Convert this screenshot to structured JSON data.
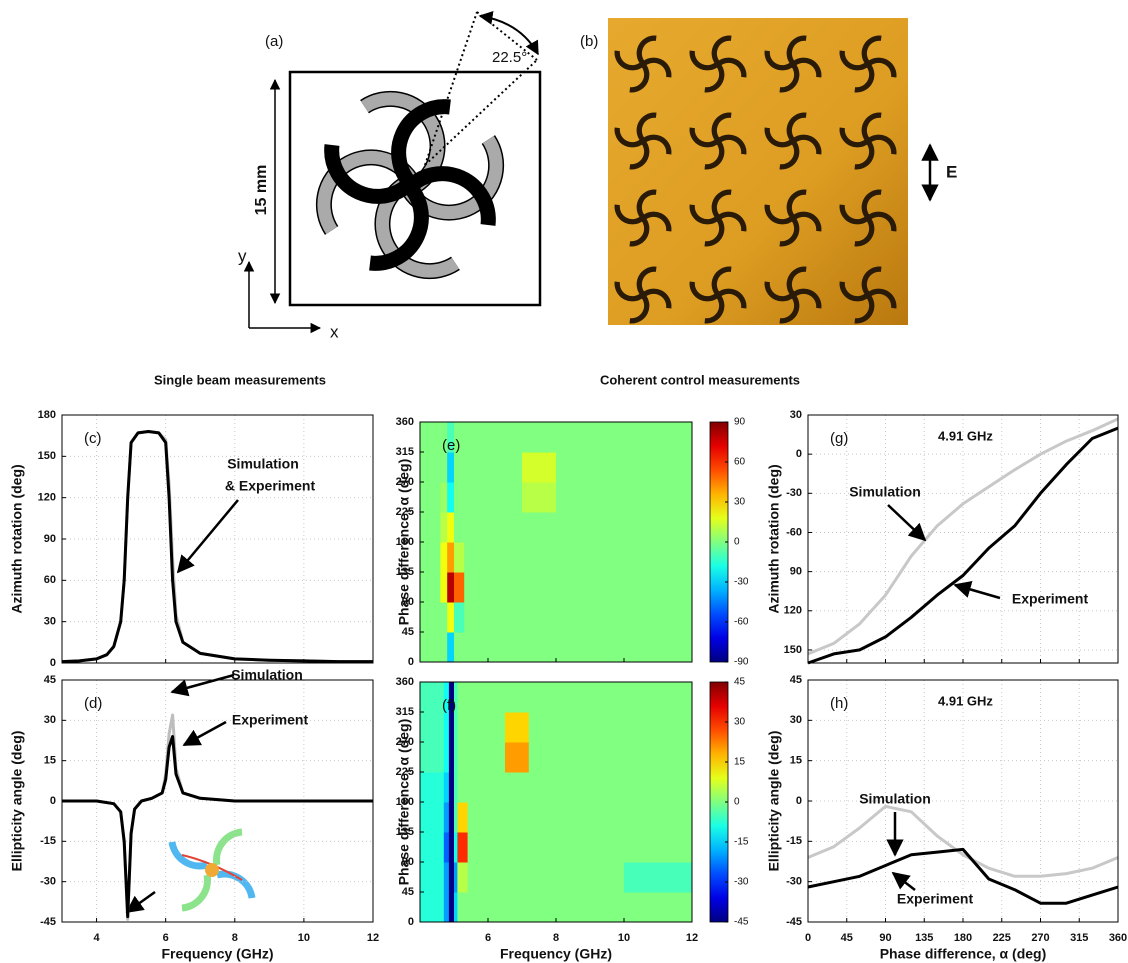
{
  "figure": {
    "a": {
      "label": "(a)",
      "angle": "22.5°",
      "size": "15 mm",
      "y_axis": "y",
      "x_axis": "x"
    },
    "b": {
      "label": "(b)",
      "field": "E"
    },
    "headings": [
      "Single beam measurements",
      "Coherent control measurements"
    ]
  },
  "chart_data": [
    {
      "type": "line",
      "label": "(c)",
      "ylabel": "Azimuth rotation (deg)",
      "x": [
        3,
        3.5,
        4,
        4.3,
        4.5,
        4.7,
        4.8,
        4.9,
        5.0,
        5.2,
        5.5,
        5.8,
        6.0,
        6.1,
        6.2,
        6.3,
        6.5,
        7,
        8,
        9,
        10,
        11,
        12
      ],
      "xlim": [
        3,
        12
      ],
      "xticks": [
        4,
        6,
        8,
        10,
        12
      ],
      "xtick_labels": false,
      "ylim": [
        0,
        180
      ],
      "yticks": [
        0,
        30,
        60,
        90,
        120,
        150,
        180
      ],
      "grid": true,
      "series": [
        {
          "color": "#bdbdbd",
          "values": [
            1,
            1.5,
            3,
            6,
            12,
            30,
            60,
            120,
            160,
            167,
            168,
            167,
            162,
            130,
            75,
            35,
            15,
            7,
            3,
            2,
            1.5,
            1,
            1
          ]
        },
        {
          "color": "#000000",
          "values": [
            1,
            1.5,
            3,
            6,
            12,
            30,
            60,
            120,
            160,
            167,
            168,
            167,
            160,
            120,
            60,
            30,
            15,
            7,
            3,
            2,
            1.5,
            1,
            1
          ]
        }
      ],
      "annotations": [
        {
          "text": "Simulation",
          "color": "#c00000"
        },
        {
          "text": "& Experiment",
          "color": "#000000"
        }
      ]
    },
    {
      "type": "line",
      "label": "(d)",
      "ylabel": "Ellipticity angle (deg)",
      "xlabel": "Frequency (GHz)",
      "x": [
        3,
        4,
        4.5,
        4.7,
        4.8,
        4.9,
        5.0,
        5.1,
        5.3,
        5.6,
        5.9,
        6.0,
        6.1,
        6.2,
        6.3,
        6.5,
        7,
        8,
        9,
        10,
        11,
        12
      ],
      "xlim": [
        3,
        12
      ],
      "xticks": [
        4,
        6,
        8,
        10,
        12
      ],
      "xtick_labels": true,
      "ylim": [
        -45,
        45
      ],
      "yticks": [
        -45,
        -30,
        -15,
        0,
        15,
        30,
        45
      ],
      "grid": true,
      "series": [
        {
          "color": "#bdbdbd",
          "values": [
            0,
            0,
            -1,
            -4,
            -16,
            -44,
            -12,
            -3,
            0,
            1,
            3,
            10,
            25,
            32,
            12,
            3,
            1,
            0,
            0,
            0,
            0,
            0
          ]
        },
        {
          "color": "#000000",
          "values": [
            0,
            0,
            -1,
            -4,
            -15,
            -43,
            -12,
            -3,
            0,
            1,
            3,
            8,
            20,
            24,
            10,
            3,
            1,
            0,
            0,
            0,
            0,
            0
          ]
        }
      ],
      "annotations": [
        {
          "text": "Simulation",
          "color": "#c00000"
        },
        {
          "text": "Experiment",
          "color": "#000000"
        }
      ]
    },
    {
      "type": "heatmap",
      "label": "(e)",
      "ylabel": "Phase difference, α (deg)",
      "xlim": [
        4,
        12
      ],
      "xticks": [
        6,
        8,
        10,
        12
      ],
      "xtick_labels": false,
      "ylim": [
        0,
        360
      ],
      "yticks": [
        0,
        45,
        90,
        135,
        180,
        225,
        270,
        315,
        360
      ],
      "x_edges": [
        4,
        4.6,
        4.8,
        5.0,
        5.3,
        6,
        7,
        8,
        10,
        12
      ],
      "y_edges": [
        0,
        45,
        90,
        135,
        180,
        225,
        270,
        315,
        360
      ],
      "values": [
        [
          0,
          0,
          -30,
          0,
          0,
          0,
          0,
          0,
          0
        ],
        [
          0,
          0,
          20,
          -10,
          0,
          0,
          0,
          0,
          0
        ],
        [
          0,
          20,
          80,
          50,
          0,
          0,
          0,
          0,
          0
        ],
        [
          0,
          20,
          40,
          10,
          0,
          0,
          0,
          0,
          0
        ],
        [
          0,
          10,
          20,
          0,
          0,
          0,
          0,
          0,
          0
        ],
        [
          0,
          5,
          -20,
          0,
          0,
          0,
          10,
          0,
          0
        ],
        [
          0,
          0,
          -30,
          0,
          0,
          0,
          15,
          0,
          0
        ],
        [
          0,
          0,
          -10,
          0,
          0,
          0,
          0,
          0,
          0
        ]
      ],
      "colormap": "jet",
      "clim": [
        -90,
        90
      ],
      "cbar_ticks": [
        -90,
        -60,
        -30,
        0,
        30,
        60,
        90
      ]
    },
    {
      "type": "heatmap",
      "label": "(f)",
      "ylabel": "Phase difference, α (deg)",
      "xlabel": "Frequency (GHz)",
      "xlim": [
        4,
        12
      ],
      "xticks": [
        6,
        8,
        10,
        12
      ],
      "xtick_labels": true,
      "ylim": [
        0,
        360
      ],
      "yticks": [
        0,
        45,
        90,
        135,
        180,
        225,
        270,
        315,
        360
      ],
      "x_edges": [
        4,
        4.7,
        4.85,
        5.0,
        5.1,
        5.4,
        6.5,
        7.2,
        8,
        10,
        12
      ],
      "y_edges": [
        0,
        45,
        90,
        135,
        180,
        225,
        270,
        315,
        360
      ],
      "values": [
        [
          -8,
          -20,
          -45,
          -15,
          0,
          0,
          0,
          0,
          0,
          0
        ],
        [
          -8,
          -20,
          -45,
          -20,
          5,
          0,
          0,
          0,
          0,
          -5
        ],
        [
          -8,
          -25,
          -45,
          -10,
          30,
          0,
          0,
          0,
          0,
          0
        ],
        [
          -8,
          -20,
          -45,
          -5,
          15,
          0,
          0,
          0,
          0,
          0
        ],
        [
          -8,
          -15,
          -45,
          -5,
          0,
          0,
          0,
          0,
          0,
          0
        ],
        [
          -5,
          -10,
          -45,
          -5,
          0,
          0,
          20,
          0,
          0,
          0
        ],
        [
          -5,
          -10,
          -45,
          -5,
          0,
          0,
          15,
          0,
          0,
          0
        ],
        [
          -5,
          -10,
          -45,
          -5,
          0,
          0,
          0,
          0,
          0,
          0
        ]
      ],
      "colormap": "jet",
      "clim": [
        -45,
        45
      ],
      "cbar_ticks": [
        -45,
        -30,
        -15,
        0,
        15,
        30,
        45
      ]
    },
    {
      "type": "line",
      "label": "(g)",
      "title": "4.91 GHz",
      "ylabel": "Azimuth rotation (deg)",
      "x": [
        0,
        30,
        60,
        90,
        120,
        150,
        180,
        210,
        240,
        270,
        300,
        330,
        360
      ],
      "xlim": [
        0,
        360
      ],
      "xticks": [
        0,
        45,
        90,
        135,
        180,
        225,
        270,
        315,
        360
      ],
      "xtick_labels": false,
      "ylim": [
        -160,
        30
      ],
      "yticks": [
        30,
        0,
        -30,
        -60,
        {
          "value": -90,
          "label": "90"
        },
        {
          "value": -120,
          "label": "120"
        },
        {
          "value": -150,
          "label": "150"
        }
      ],
      "grid": true,
      "series": [
        {
          "color": "#c8c8c8",
          "values": [
            -153,
            -145,
            -130,
            -108,
            -78,
            -55,
            -38,
            -25,
            -12,
            0,
            10,
            18,
            27
          ]
        },
        {
          "color": "#000000",
          "values": [
            -160,
            -153,
            -150,
            -140,
            -125,
            -108,
            -93,
            -72,
            -55,
            -30,
            -8,
            12,
            20
          ]
        }
      ],
      "annotations": [
        {
          "text": "Simulation",
          "color": "#c00000"
        },
        {
          "text": "Experiment",
          "color": "#000000"
        }
      ]
    },
    {
      "type": "line",
      "label": "(h)",
      "title": "4.91 GHz",
      "ylabel": "Ellipticity angle (deg)",
      "xlabel": "Phase difference, α (deg)",
      "x": [
        0,
        30,
        60,
        90,
        120,
        150,
        180,
        210,
        240,
        270,
        300,
        330,
        360
      ],
      "xlim": [
        0,
        360
      ],
      "xticks": [
        0,
        45,
        90,
        135,
        180,
        225,
        270,
        315,
        360
      ],
      "xtick_labels": true,
      "ylim": [
        -45,
        45
      ],
      "yticks": [
        -45,
        -30,
        -15,
        0,
        15,
        30,
        45
      ],
      "grid": true,
      "series": [
        {
          "color": "#c8c8c8",
          "values": [
            -21,
            -17,
            -10,
            -2,
            -4,
            -13,
            -20,
            -25,
            -28,
            -28,
            -27,
            -25,
            -21
          ]
        },
        {
          "color": "#000000",
          "values": [
            -32,
            -30,
            -28,
            -24,
            -20,
            -19,
            -18,
            -29,
            -33,
            -38,
            -38,
            -35,
            -32
          ]
        }
      ],
      "annotations": [
        {
          "text": "Simulation",
          "color": "#c00000"
        },
        {
          "text": "Experiment",
          "color": "#000000"
        }
      ]
    }
  ]
}
